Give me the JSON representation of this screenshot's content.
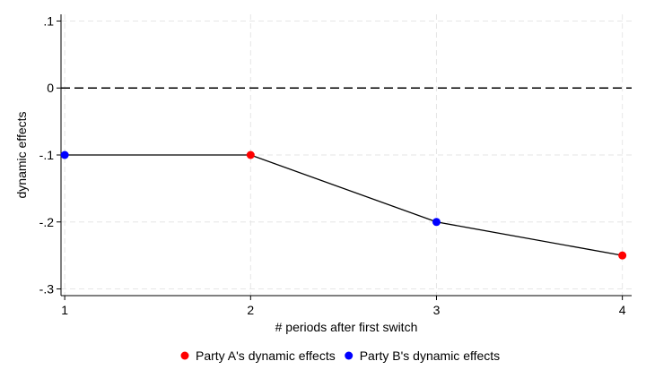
{
  "chart_data": {
    "type": "line",
    "xlabel": "# periods after first switch",
    "ylabel": "dynamic effects",
    "x_ticks": [
      1,
      2,
      3,
      4
    ],
    "y_ticks": [
      0.1,
      0,
      -0.1,
      -0.2,
      -0.3
    ],
    "y_tick_labels": [
      ".1",
      "0",
      "-.1",
      "-.2",
      "-.3"
    ],
    "xlim": [
      0.98,
      4.05
    ],
    "ylim": [
      -0.31,
      0.11
    ],
    "grid": true,
    "reference_line": {
      "y": 0,
      "style": "dashed"
    },
    "connecting_line": {
      "x": [
        1,
        2,
        3,
        4
      ],
      "y": [
        -0.1,
        -0.1,
        -0.2,
        -0.25
      ]
    },
    "series": [
      {
        "name": "Party A's dynamic effects",
        "color": "#ff0000",
        "points": [
          {
            "x": 2,
            "y": -0.1
          },
          {
            "x": 4,
            "y": -0.25
          }
        ]
      },
      {
        "name": "Party B's dynamic effects",
        "color": "#0000ff",
        "points": [
          {
            "x": 1,
            "y": -0.1
          },
          {
            "x": 3,
            "y": -0.2
          }
        ]
      }
    ],
    "legend_position": "bottom"
  }
}
